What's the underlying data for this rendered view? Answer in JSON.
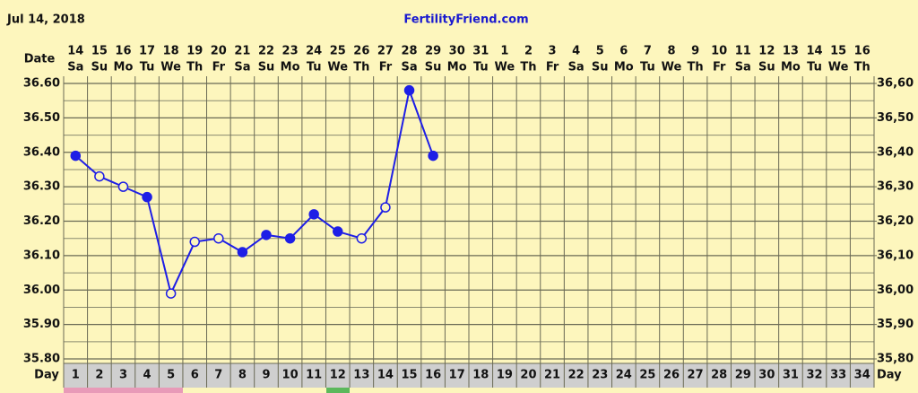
{
  "chart_data": {
    "type": "line",
    "title": "FertilityFriend.com",
    "subtitle": "Jul 14, 2018",
    "date_label": "Date",
    "day_label": "Day",
    "categories": [
      1,
      2,
      3,
      4,
      5,
      6,
      7,
      8,
      9,
      10,
      11,
      12,
      13,
      14,
      15,
      16,
      17,
      18,
      19,
      20,
      21,
      22,
      23,
      24,
      25,
      26,
      27,
      28,
      29,
      30,
      31,
      32,
      33,
      34
    ],
    "dates": [
      14,
      15,
      16,
      17,
      18,
      19,
      20,
      21,
      22,
      23,
      24,
      25,
      26,
      27,
      28,
      29,
      30,
      31,
      1,
      2,
      3,
      4,
      5,
      6,
      7,
      8,
      9,
      10,
      11,
      12,
      13,
      14,
      15,
      16
    ],
    "weekdays": [
      "Sa",
      "Su",
      "Mo",
      "Tu",
      "We",
      "Th",
      "Fr",
      "Sa",
      "Su",
      "Mo",
      "Tu",
      "We",
      "Th",
      "Fr",
      "Sa",
      "Su",
      "Mo",
      "Tu",
      "We",
      "Th",
      "Fr",
      "Sa",
      "Su",
      "Mo",
      "Tu",
      "We",
      "Th",
      "Fr",
      "Sa",
      "Su",
      "Mo",
      "Tu",
      "We",
      "Th"
    ],
    "series": [
      {
        "color": "#1e1ee6",
        "values": [
          36.39,
          36.33,
          36.3,
          36.27,
          35.99,
          36.14,
          36.15,
          36.11,
          36.16,
          36.15,
          36.22,
          36.17,
          36.15,
          36.24,
          36.58,
          36.39,
          null,
          null,
          null,
          null,
          null,
          null,
          null,
          null,
          null,
          null,
          null,
          null,
          null,
          null,
          null,
          null,
          null,
          null
        ],
        "markers": [
          "filled",
          "open",
          "open",
          "filled",
          "open",
          "open",
          "open",
          "filled",
          "filled",
          "filled",
          "filled",
          "filled",
          "open",
          "open",
          "filled",
          "filled",
          null,
          null,
          null,
          null,
          null,
          null,
          null,
          null,
          null,
          null,
          null,
          null,
          null,
          null,
          null,
          null,
          null,
          null
        ]
      }
    ],
    "ylim": [
      35.8,
      36.6
    ],
    "yticks": [
      {
        "value": 35.8,
        "label": "35.80"
      },
      {
        "value": 35.9,
        "label": "35.90"
      },
      {
        "value": 36.0,
        "label": "36.00"
      },
      {
        "value": 36.1,
        "label": "36.10"
      },
      {
        "value": 36.2,
        "label": "36.20"
      },
      {
        "value": 36.3,
        "label": "36.30"
      },
      {
        "value": 36.4,
        "label": "36.40"
      },
      {
        "value": 36.5,
        "label": "36.50"
      },
      {
        "value": 36.6,
        "label": "36.60"
      }
    ],
    "y2lim": [
      35.8,
      36.6
    ],
    "y2ticks": [
      {
        "value": 35.8,
        "label": "35,80"
      },
      {
        "value": 35.9,
        "label": "35,90"
      },
      {
        "value": 36.0,
        "label": "36,00"
      },
      {
        "value": 36.1,
        "label": "36,10"
      },
      {
        "value": 36.2,
        "label": "36,20"
      },
      {
        "value": 36.3,
        "label": "36,30"
      },
      {
        "value": 36.4,
        "label": "36,40"
      },
      {
        "value": 36.5,
        "label": "36,50"
      },
      {
        "value": 36.6,
        "label": "36,60"
      }
    ],
    "minor_yticks": [
      35.85,
      35.95,
      36.05,
      36.15,
      36.25,
      36.35,
      36.45,
      36.55
    ],
    "grid": true
  }
}
